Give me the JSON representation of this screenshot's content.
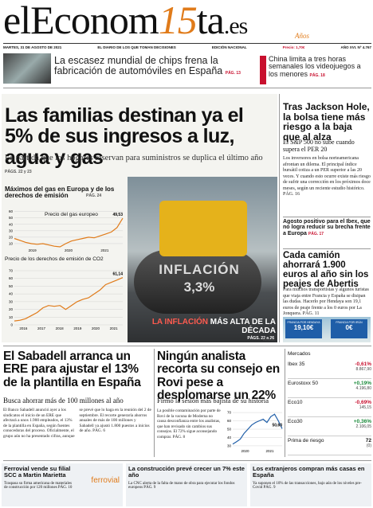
{
  "masthead": {
    "logo_a": "elEconom",
    "logo_b": "15",
    "logo_c": "ta",
    "logo_d": ".es",
    "anos": "Años",
    "date": "MARTES, 31 DE AGOSTO DE 2021",
    "slogan": "EL DIARIO DE LOS QUE TOMAN DECISIONES",
    "edition": "EDICIÓN NACIONAL",
    "price": "Precio: 1,70€",
    "issue": "AÑO XVI. Nº 4.767"
  },
  "teasers": [
    {
      "headline": "La escasez mundial de chips frena la fabricación de automóviles en España",
      "page": "PÁG. 13"
    },
    {
      "headline": "China limita a tres horas semanales los videojuegos a los menores",
      "page": "PÁG. 18"
    }
  ],
  "main": {
    "headline": "Las familias destinan ya el 5% de sus ingresos a luz, agua y gas",
    "subhead": "La partida que los hogares reservan para suministros se duplica el último año",
    "pages": "PÁGS. 22 y 23",
    "chart_title": "Máximos del gas en Europa y de los derechos de emisión",
    "chart_page": "PÁG. 24",
    "gas": {
      "label": "Precio del gas europeo",
      "last_label": "49,53",
      "x_labels": [
        "2019",
        "2020",
        "2021"
      ],
      "yticks": [
        10,
        20,
        30,
        40,
        50,
        60
      ],
      "ylim": [
        5,
        62
      ],
      "values": [
        18,
        15,
        12,
        10,
        9,
        10,
        8,
        6,
        5,
        10,
        14,
        16,
        18,
        20,
        19,
        22,
        25,
        28,
        35,
        49.53
      ]
    },
    "co2": {
      "label": "Precio de los derechos de emisión de CO2",
      "last_label": "61,14",
      "x_labels": [
        "2016",
        "2017",
        "2018",
        "2019",
        "2020",
        "2021"
      ],
      "yticks": [
        0,
        10,
        20,
        30,
        40,
        50,
        60,
        70
      ],
      "ylim": [
        0,
        70
      ],
      "values": [
        5,
        6,
        8,
        12,
        16,
        22,
        25,
        24,
        25,
        20,
        25,
        30,
        33,
        35,
        40,
        45,
        52,
        55,
        58,
        61.14
      ]
    },
    "photo_title": "INFLACIÓN",
    "photo_value": "3,3%",
    "photo_caption_a": "LA INFLACIÓN",
    "photo_caption_b": "MÁS ALTA DE LA DÉCADA",
    "photo_pages": "PÁGS. 22 a 26",
    "credit": "ISTOCK"
  },
  "side": {
    "headline1": "Tras Jackson Hole, la bolsa tiene más riesgo a la baja que al alza",
    "subhead1": "El S&P 500 no sube cuando supera el PER 20",
    "body1": "Los inversores en bolsa norteamericana afrontan un dilema. El principal índice bursátil cotiza a un PER superior a las 20 veces. Y cuando esto ocurre existe más riesgo de sufrir una corrección en los próximos doce meses, según un reciente estudio histórico. PÁG. 16",
    "brief": "Agosto positivo para el Ibex, que no logra reducir su brecha frente a Europa",
    "brief_page": "PÁG. 17",
    "headline2": "Cada camión ahorrará 1.900 euros al año sin los peajes de Abertis",
    "body2": "Para muchos transportistas y algunos turistas que viaja entre Francia y España se disipan las dudas. Hacerlo por Hendaya son 19,1 euros de peaje frente a los 0 euros por La Jonquera. PÁG. 11",
    "sign1_a": "FRANCIA POR HENDAYA",
    "sign1_b": "19,10€",
    "sign2_a": "FRANCIA POR IRÚN",
    "sign2_b": "0€"
  },
  "sabadell": {
    "headline": "El Sabadell arranca un ERE para ajustar el 13% de la plantilla en España",
    "subhead": "Busca ahorrar más de 100 millones al año",
    "body": "El Banco Sabadell anunció ayer a los sindicatos el inicio de un ERE que afectará a unos 1.900 empleados, el 13% de la plantilla en España, según fuentes conocedoras del proceso. Oficialmente, el grupo aún no ha presentado cifras, aunque se prevé que lo haga en la reunión del 2 de septiembre. El recorte generaría ahorros anuales de más de 100 millones y Sabadell ya ajustó 1.800 puestos a inicios de año. PÁG. 6"
  },
  "rovi": {
    "headline": "Ningún analista recorta su consejo en Rovi pese a desplomarse un 22%",
    "subhead": "Firmó la sesión más bajista de su historia",
    "body": "La posible contaminación por parte de Rovi de la vacuna de Moderna no causa desconfianza entre los analistas, que han revisado sin cambios sus consejos. El 72% sigue aconsejando comprar. PÁG. 8",
    "chart": {
      "last_label": "50,60",
      "x_labels": [
        "2020",
        "2021"
      ],
      "yticks": [
        30,
        40,
        50,
        60,
        70
      ],
      "ylim": [
        28,
        72
      ],
      "values": [
        32,
        35,
        38,
        45,
        50,
        55,
        58,
        60,
        62,
        58,
        65,
        68,
        60,
        50.6
      ]
    }
  },
  "markets": {
    "title": "Mercados",
    "rows": [
      {
        "name": "Ibex 35",
        "change": "-0,61%",
        "level": "8.867,90"
      },
      {
        "name": "Eurostoxx 50",
        "change": "+0,19%",
        "level": "4.196,80"
      },
      {
        "name": "Eco10",
        "change": "-0,69%",
        "level": "145,15"
      },
      {
        "name": "Eco30",
        "change": "+0,36%",
        "level": "2.106,05"
      },
      {
        "name": "Prima de riesgo",
        "change": "72",
        "level": "(0)"
      }
    ]
  },
  "footer": [
    {
      "headline": "Ferrovial vende su filial SCC a Martin Marietta",
      "body": "Traspasa su firma americana de materiales de construcción por 120 millones PÁG. 10",
      "brand": "ferrovial"
    },
    {
      "headline": "La construcción prevé crecer un 7% este año",
      "body": "La CNC alerta de la falta de mano de obra para ejecutar los fondos europeos PÁG. 9"
    },
    {
      "headline": "Los extranjeros compran más casas en España",
      "body": "Ya suponen el 10% de las transacciones, bajo aún de los niveles pre-Covid PÁG. 9"
    }
  ]
}
